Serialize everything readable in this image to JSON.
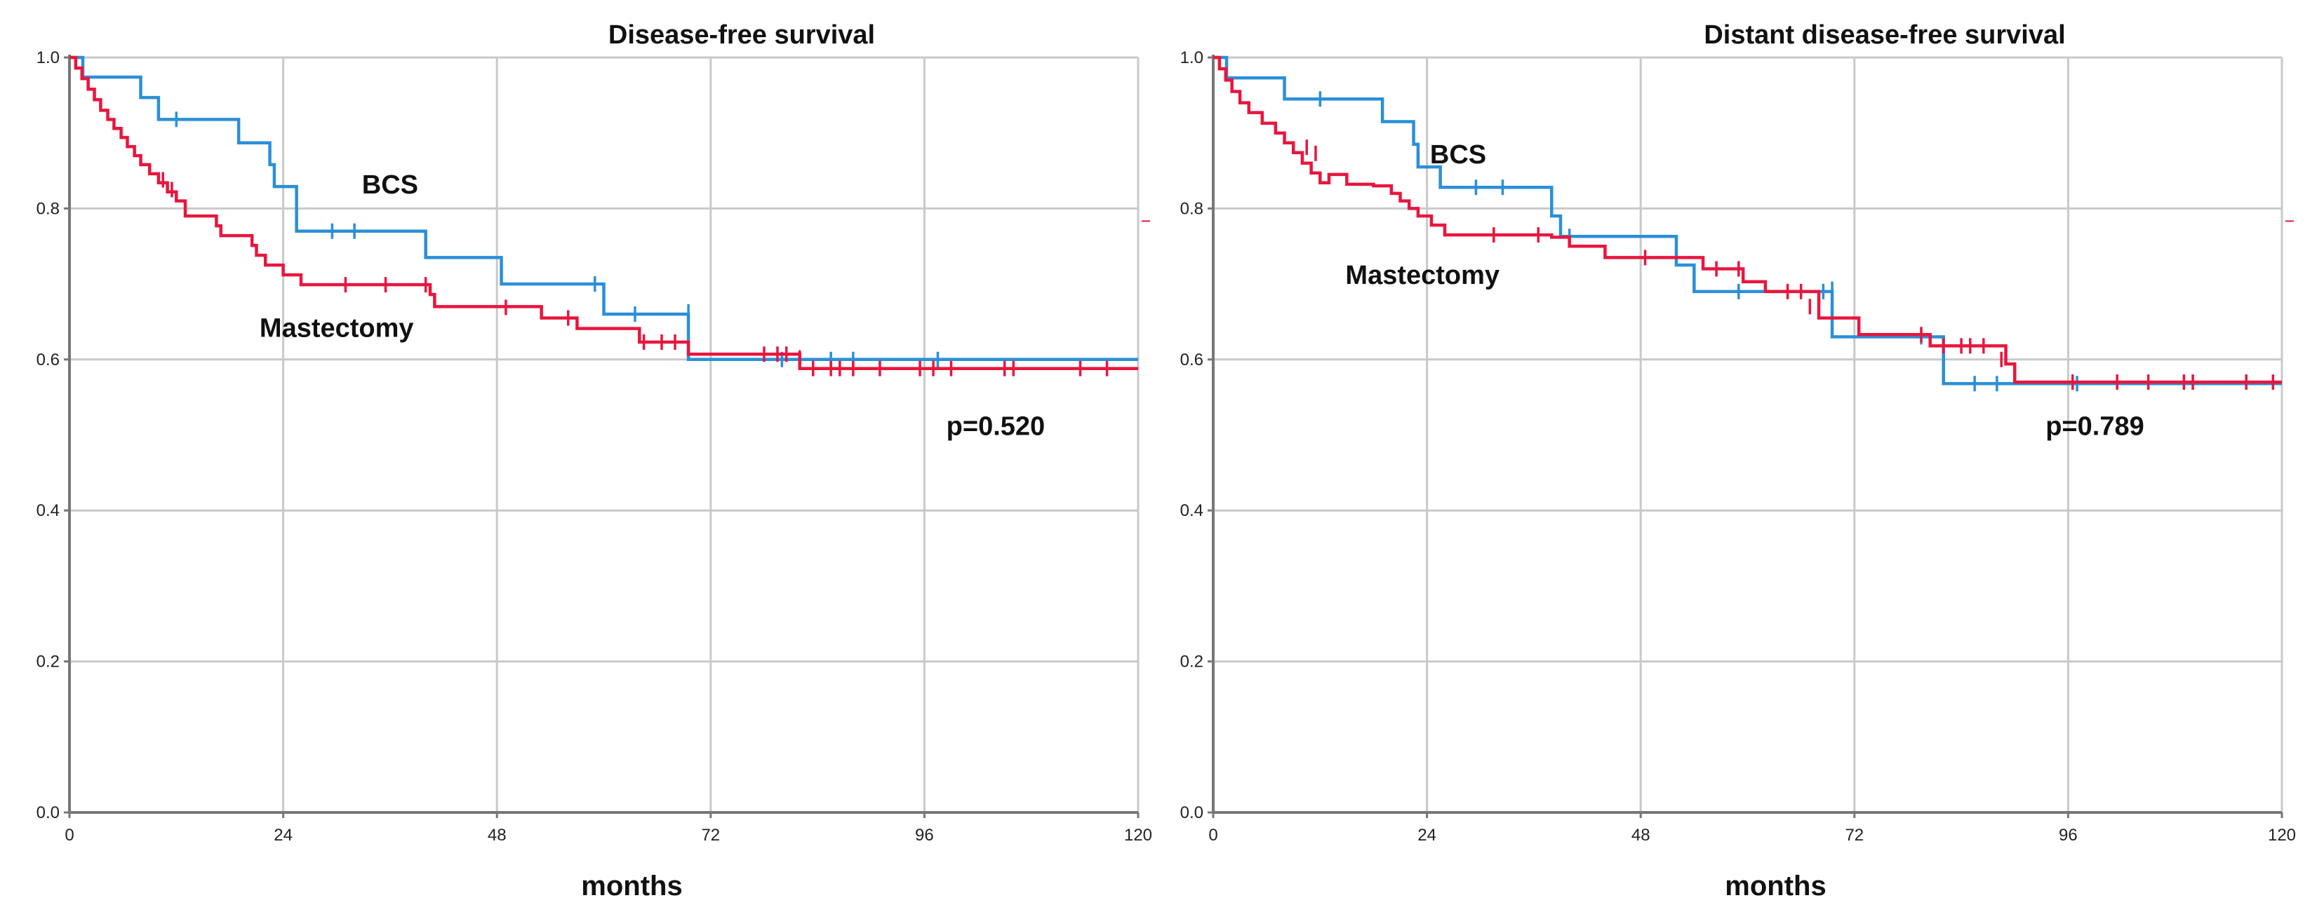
{
  "chart_data": [
    {
      "type": "line",
      "subtype": "kaplan-meier",
      "title": "Disease-free survival",
      "xlabel": "months",
      "ylabel": "",
      "xlim": [
        0,
        120
      ],
      "ylim": [
        0.0,
        1.0
      ],
      "xticks": [
        "0",
        "24",
        "48",
        "72",
        "96",
        "120"
      ],
      "yticks": [
        "0.0",
        "0.2",
        "0.4",
        "0.6",
        "0.8",
        "1.0"
      ],
      "grid": true,
      "annotations": [
        {
          "id": "bcs",
          "text": "BCS",
          "x": 36,
          "y": 0.82
        },
        {
          "id": "mastectomy",
          "text": "Mastectomy",
          "x": 30,
          "y": 0.63
        },
        {
          "id": "pvalue",
          "text": "p=0.520",
          "x": 104,
          "y": 0.5
        }
      ],
      "series": [
        {
          "name": "BCS",
          "color": "#2b8fd8",
          "steps": [
            [
              0,
              1.0
            ],
            [
              1.5,
              0.974
            ],
            [
              8,
              0.947
            ],
            [
              10,
              0.918
            ],
            [
              19,
              0.887
            ],
            [
              22.5,
              0.858
            ],
            [
              23,
              0.829
            ],
            [
              25.5,
              0.77
            ],
            [
              40,
              0.735
            ],
            [
              48.5,
              0.7
            ],
            [
              60,
              0.66
            ],
            [
              69.5,
              0.6
            ],
            [
              120,
              0.6
            ]
          ],
          "censored": [
            [
              12,
              0.918
            ],
            [
              29.5,
              0.77
            ],
            [
              32,
              0.77
            ],
            [
              59,
              0.7
            ],
            [
              63.5,
              0.66
            ],
            [
              69.5,
              0.663
            ],
            [
              80,
              0.6
            ],
            [
              85.5,
              0.6
            ],
            [
              88,
              0.6
            ],
            [
              97.5,
              0.6
            ]
          ]
        },
        {
          "name": "Mastectomy",
          "color": "#e8163e",
          "steps": [
            [
              0,
              1.0
            ],
            [
              0.7,
              0.986
            ],
            [
              1.4,
              0.972
            ],
            [
              2.1,
              0.958
            ],
            [
              2.8,
              0.944
            ],
            [
              3.5,
              0.93
            ],
            [
              4.3,
              0.918
            ],
            [
              5,
              0.906
            ],
            [
              5.8,
              0.894
            ],
            [
              6.5,
              0.882
            ],
            [
              7.3,
              0.87
            ],
            [
              8,
              0.858
            ],
            [
              9,
              0.846
            ],
            [
              10,
              0.834
            ],
            [
              11,
              0.822
            ],
            [
              12,
              0.81
            ],
            [
              13,
              0.79
            ],
            [
              16.5,
              0.777
            ],
            [
              17,
              0.764
            ],
            [
              20.5,
              0.751
            ],
            [
              21,
              0.738
            ],
            [
              22,
              0.725
            ],
            [
              24,
              0.712
            ],
            [
              26,
              0.699
            ],
            [
              40.5,
              0.686
            ],
            [
              41,
              0.67
            ],
            [
              49,
              0.67
            ],
            [
              53,
              0.655
            ],
            [
              57,
              0.641
            ],
            [
              64,
              0.623
            ],
            [
              69.5,
              0.607
            ],
            [
              82,
              0.588
            ],
            [
              120,
              0.588
            ]
          ],
          "censored": [
            [
              10.5,
              0.838
            ],
            [
              11.5,
              0.825
            ],
            [
              31,
              0.699
            ],
            [
              35.5,
              0.699
            ],
            [
              40,
              0.699
            ],
            [
              49,
              0.669
            ],
            [
              56,
              0.655
            ],
            [
              64.5,
              0.623
            ],
            [
              66.5,
              0.623
            ],
            [
              68,
              0.623
            ],
            [
              78,
              0.607
            ],
            [
              79.5,
              0.607
            ],
            [
              80.5,
              0.607
            ],
            [
              82,
              0.602
            ],
            [
              83.5,
              0.588
            ],
            [
              85.5,
              0.588
            ],
            [
              86.5,
              0.588
            ],
            [
              88,
              0.588
            ],
            [
              91,
              0.588
            ],
            [
              95.5,
              0.588
            ],
            [
              97,
              0.588
            ],
            [
              99,
              0.588
            ],
            [
              105,
              0.588
            ],
            [
              106,
              0.588
            ],
            [
              113.5,
              0.588
            ],
            [
              116.5,
              0.588
            ]
          ]
        }
      ]
    },
    {
      "type": "line",
      "subtype": "kaplan-meier",
      "title": "Distant disease-free survival",
      "xlabel": "months",
      "ylabel": "",
      "xlim": [
        0,
        120
      ],
      "ylim": [
        0.0,
        1.0
      ],
      "xticks": [
        "0",
        "24",
        "48",
        "72",
        "96",
        "120"
      ],
      "yticks": [
        "0.0",
        "0.2",
        "0.4",
        "0.6",
        "0.8",
        "1.0"
      ],
      "grid": true,
      "annotations": [
        {
          "id": "bcs",
          "text": "BCS",
          "x": 27.5,
          "y": 0.86
        },
        {
          "id": "mastectomy",
          "text": "Mastectomy",
          "x": 23.5,
          "y": 0.7
        },
        {
          "id": "pvalue",
          "text": "p=0.789",
          "x": 99,
          "y": 0.5
        }
      ],
      "series": [
        {
          "name": "BCS",
          "color": "#2b8fd8",
          "steps": [
            [
              0,
              1.0
            ],
            [
              1.5,
              0.973
            ],
            [
              8,
              0.945
            ],
            [
              19,
              0.915
            ],
            [
              22.5,
              0.885
            ],
            [
              23,
              0.855
            ],
            [
              25.5,
              0.828
            ],
            [
              38,
              0.79
            ],
            [
              39,
              0.763
            ],
            [
              52,
              0.725
            ],
            [
              54,
              0.69
            ],
            [
              69.5,
              0.63
            ],
            [
              82,
              0.568
            ],
            [
              120,
              0.568
            ]
          ],
          "censored": [
            [
              12,
              0.945
            ],
            [
              29.5,
              0.828
            ],
            [
              32.5,
              0.828
            ],
            [
              40,
              0.763
            ],
            [
              59,
              0.69
            ],
            [
              68.5,
              0.69
            ],
            [
              69.5,
              0.693
            ],
            [
              79.5,
              0.63
            ],
            [
              85.5,
              0.568
            ],
            [
              88,
              0.568
            ],
            [
              97,
              0.568
            ]
          ]
        },
        {
          "name": "Mastectomy",
          "color": "#e8163e",
          "steps": [
            [
              0,
              1.0
            ],
            [
              0.7,
              0.985
            ],
            [
              1.4,
              0.97
            ],
            [
              2.1,
              0.955
            ],
            [
              3,
              0.94
            ],
            [
              4,
              0.927
            ],
            [
              5.5,
              0.913
            ],
            [
              7,
              0.9
            ],
            [
              8,
              0.887
            ],
            [
              9,
              0.874
            ],
            [
              10,
              0.86
            ],
            [
              11,
              0.847
            ],
            [
              12,
              0.834
            ],
            [
              13,
              0.845
            ],
            [
              15,
              0.832
            ],
            [
              18,
              0.83
            ],
            [
              20,
              0.82
            ],
            [
              21,
              0.81
            ],
            [
              22,
              0.8
            ],
            [
              23,
              0.79
            ],
            [
              24.5,
              0.778
            ],
            [
              26,
              0.765
            ],
            [
              38,
              0.762
            ],
            [
              40,
              0.75
            ],
            [
              44,
              0.735
            ],
            [
              55,
              0.72
            ],
            [
              59.5,
              0.703
            ],
            [
              62,
              0.69
            ],
            [
              68,
              0.655
            ],
            [
              72.5,
              0.633
            ],
            [
              80.5,
              0.618
            ],
            [
              89,
              0.594
            ],
            [
              90,
              0.57
            ],
            [
              120,
              0.57
            ]
          ],
          "censored": [
            [
              10.5,
              0.881
            ],
            [
              11.5,
              0.873
            ],
            [
              31.5,
              0.765
            ],
            [
              36.5,
              0.765
            ],
            [
              48.5,
              0.735
            ],
            [
              56.5,
              0.72
            ],
            [
              59,
              0.72
            ],
            [
              64.5,
              0.69
            ],
            [
              66,
              0.69
            ],
            [
              67,
              0.67
            ],
            [
              79.5,
              0.633
            ],
            [
              82,
              0.618
            ],
            [
              84,
              0.618
            ],
            [
              85,
              0.618
            ],
            [
              86.5,
              0.618
            ],
            [
              88.5,
              0.6
            ],
            [
              96.5,
              0.57
            ],
            [
              101.5,
              0.57
            ],
            [
              105,
              0.57
            ],
            [
              109,
              0.57
            ],
            [
              110,
              0.57
            ],
            [
              116,
              0.57
            ],
            [
              119,
              0.57
            ]
          ]
        }
      ]
    }
  ]
}
